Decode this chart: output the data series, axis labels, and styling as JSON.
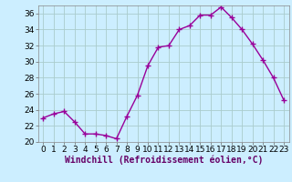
{
  "x": [
    0,
    1,
    2,
    3,
    4,
    5,
    6,
    7,
    8,
    9,
    10,
    11,
    12,
    13,
    14,
    15,
    16,
    17,
    18,
    19,
    20,
    21,
    22,
    23
  ],
  "y": [
    23.0,
    23.5,
    23.8,
    22.5,
    21.0,
    21.0,
    20.8,
    20.4,
    23.2,
    25.8,
    29.5,
    31.8,
    32.0,
    34.0,
    34.5,
    35.8,
    35.8,
    36.8,
    35.5,
    34.0,
    32.2,
    30.2,
    28.0,
    25.2
  ],
  "line_color": "#990099",
  "marker": "+",
  "marker_size": 4,
  "xlabel": "Windchill (Refroidissement éolien,°C)",
  "xlabel_fontsize": 7,
  "xlim": [
    -0.5,
    23.5
  ],
  "ylim": [
    20,
    37
  ],
  "yticks": [
    20,
    22,
    24,
    26,
    28,
    30,
    32,
    34,
    36
  ],
  "xticks": [
    0,
    1,
    2,
    3,
    4,
    5,
    6,
    7,
    8,
    9,
    10,
    11,
    12,
    13,
    14,
    15,
    16,
    17,
    18,
    19,
    20,
    21,
    22,
    23
  ],
  "grid_color": "#aacccc",
  "bg_color": "#cceeff",
  "tick_fontsize": 6.5,
  "linewidth": 1.0
}
